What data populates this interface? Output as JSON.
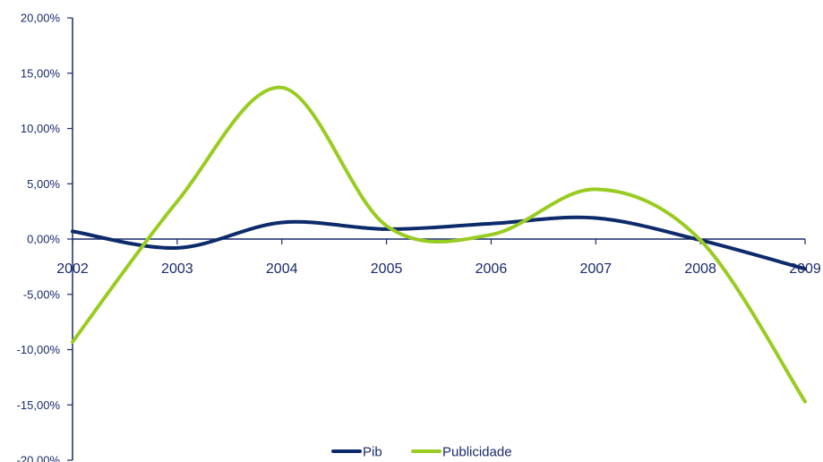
{
  "chart_data": {
    "type": "line",
    "title": "",
    "xlabel": "",
    "ylabel": "",
    "x": [
      "2002",
      "2003",
      "2004",
      "2005",
      "2006",
      "2007",
      "2008",
      "2009"
    ],
    "y_ticks": [
      "20,00%",
      "15,00%",
      "10,00%",
      "5,00%",
      "0,00%",
      "-5,00%",
      "-10,00%",
      "-15,00%",
      "-20,00%"
    ],
    "y_tick_values": [
      20,
      15,
      10,
      5,
      0,
      -5,
      -10,
      -15,
      -20
    ],
    "ylim": [
      -20,
      20
    ],
    "grid": false,
    "legend_position": "bottom",
    "series": [
      {
        "name": "Pib",
        "color": "#0d2a6b",
        "values": [
          0.7,
          -0.8,
          1.5,
          0.9,
          1.4,
          1.9,
          -0.1,
          -2.7
        ]
      },
      {
        "name": "Publicidade",
        "color": "#99cc22",
        "values": [
          -9.3,
          3.4,
          13.7,
          1.2,
          0.4,
          4.5,
          -0.1,
          -14.7
        ]
      }
    ]
  }
}
